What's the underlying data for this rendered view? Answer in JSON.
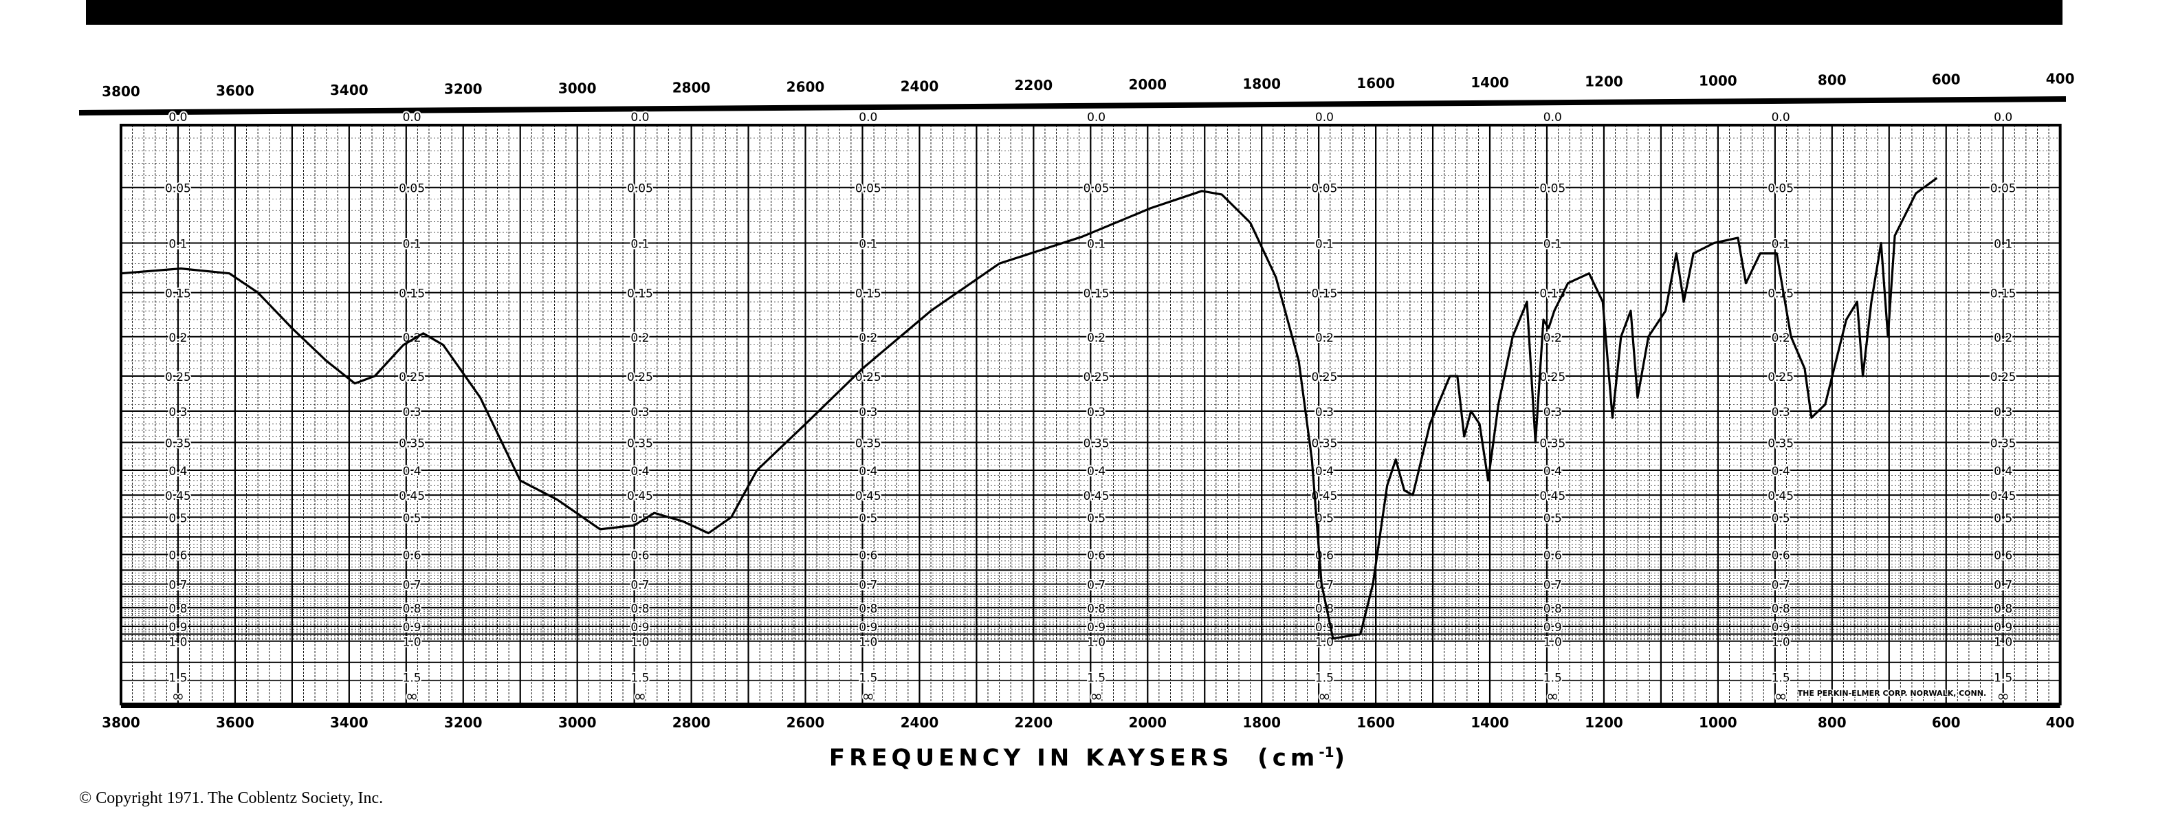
{
  "chart_data": {
    "type": "line",
    "xlabel": "FREQUENCY IN KAYSERS",
    "xlabel_unit": "cm",
    "xlabel_unit_exp": "-1",
    "xlim": [
      3800,
      400
    ],
    "x_ticks": [
      3800,
      3600,
      3400,
      3200,
      3000,
      2800,
      2600,
      2400,
      2200,
      2000,
      1800,
      1600,
      1400,
      1200,
      1000,
      800,
      600,
      400
    ],
    "y_scale": "absorbance (log transmittance)",
    "y_ticks": [
      "0.0",
      "0.05",
      "0.1",
      "0.15",
      "0.2",
      "0.25",
      "0.3",
      "0.35",
      "0.4",
      "0.45",
      "0.5",
      "0.6",
      "0.7",
      "0.8",
      "0.9",
      "1.0",
      "1.5",
      "∞"
    ],
    "y_tick_values": [
      0,
      0.05,
      0.1,
      0.15,
      0.2,
      0.25,
      0.3,
      0.35,
      0.4,
      0.45,
      0.5,
      0.6,
      0.7,
      0.8,
      0.9,
      1.0,
      1.5,
      null
    ],
    "grid": true,
    "series": [
      {
        "x": [
          3800,
          3695,
          3610,
          3560,
          3500,
          3440,
          3390,
          3355,
          3305,
          3270,
          3235,
          3170,
          3100,
          3035,
          2960,
          2900,
          2865,
          2815,
          2770,
          2730,
          2685,
          2600,
          2500,
          2380,
          2260,
          2115,
          1995,
          1905,
          1870,
          1820,
          1775,
          1735,
          1712,
          1695,
          1675,
          1627,
          1605,
          1580,
          1565,
          1550,
          1535,
          1505,
          1470,
          1457,
          1445,
          1433,
          1418,
          1403,
          1385,
          1360,
          1335,
          1320,
          1306,
          1297,
          1287,
          1263,
          1226,
          1202,
          1185,
          1170,
          1153,
          1141,
          1122,
          1092,
          1073,
          1060,
          1043,
          1007,
          965,
          951,
          926,
          897,
          872,
          848,
          836,
          812,
          775,
          756,
          746,
          731,
          714,
          702,
          690,
          653,
          616
        ],
        "y": [
          0.13,
          0.125,
          0.13,
          0.15,
          0.19,
          0.23,
          0.26,
          0.25,
          0.21,
          0.196,
          0.21,
          0.28,
          0.42,
          0.46,
          0.53,
          0.52,
          0.49,
          0.51,
          0.54,
          0.5,
          0.4,
          0.32,
          0.24,
          0.17,
          0.12,
          0.094,
          0.068,
          0.053,
          0.056,
          0.081,
          0.134,
          0.23,
          0.38,
          0.7,
          0.98,
          0.95,
          0.7,
          0.43,
          0.38,
          0.44,
          0.45,
          0.32,
          0.25,
          0.25,
          0.34,
          0.3,
          0.32,
          0.42,
          0.29,
          0.2,
          0.16,
          0.35,
          0.18,
          0.19,
          0.17,
          0.14,
          0.13,
          0.16,
          0.31,
          0.2,
          0.17,
          0.28,
          0.2,
          0.17,
          0.11,
          0.16,
          0.11,
          0.1,
          0.095,
          0.14,
          0.11,
          0.11,
          0.2,
          0.24,
          0.31,
          0.29,
          0.18,
          0.16,
          0.25,
          0.16,
          0.1,
          0.2,
          0.093,
          0.055,
          0.042
        ]
      }
    ],
    "maker_imprint": "THE PERKIN-ELMER CORP. NORWALK, CONN."
  },
  "copyright": "© Copyright 1971.  The Coblentz Society, Inc."
}
